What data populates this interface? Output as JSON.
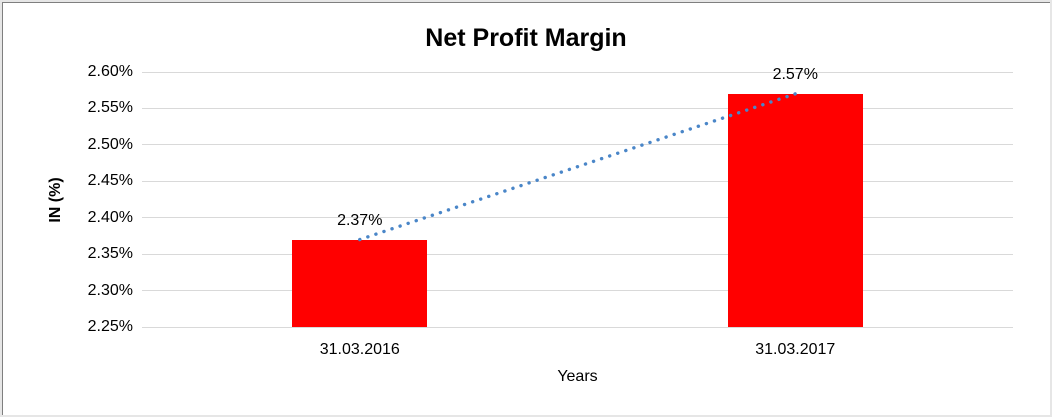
{
  "chart_data": {
    "type": "bar",
    "title": "Net Profit Margin",
    "xlabel": "Years",
    "ylabel": "IN (%)",
    "categories": [
      "31.03.2016",
      "31.03.2017"
    ],
    "series": [
      {
        "name": "Net Profit Margin",
        "values": [
          2.37,
          2.57
        ]
      }
    ],
    "data_labels": [
      "2.37%",
      "2.57%"
    ],
    "y_tick_labels": [
      "2.25%",
      "2.30%",
      "2.35%",
      "2.40%",
      "2.45%",
      "2.50%",
      "2.55%",
      "2.60%"
    ],
    "ylim": [
      2.25,
      2.6
    ],
    "ytick_step": 0.05,
    "grid": true,
    "legend": "none",
    "bar_color": "#FF0000",
    "gridline_color": "#D9D9D9",
    "text_color": "#000000",
    "trendline": {
      "type": "linear",
      "style": "dotted",
      "color": "#4A86C8"
    }
  }
}
